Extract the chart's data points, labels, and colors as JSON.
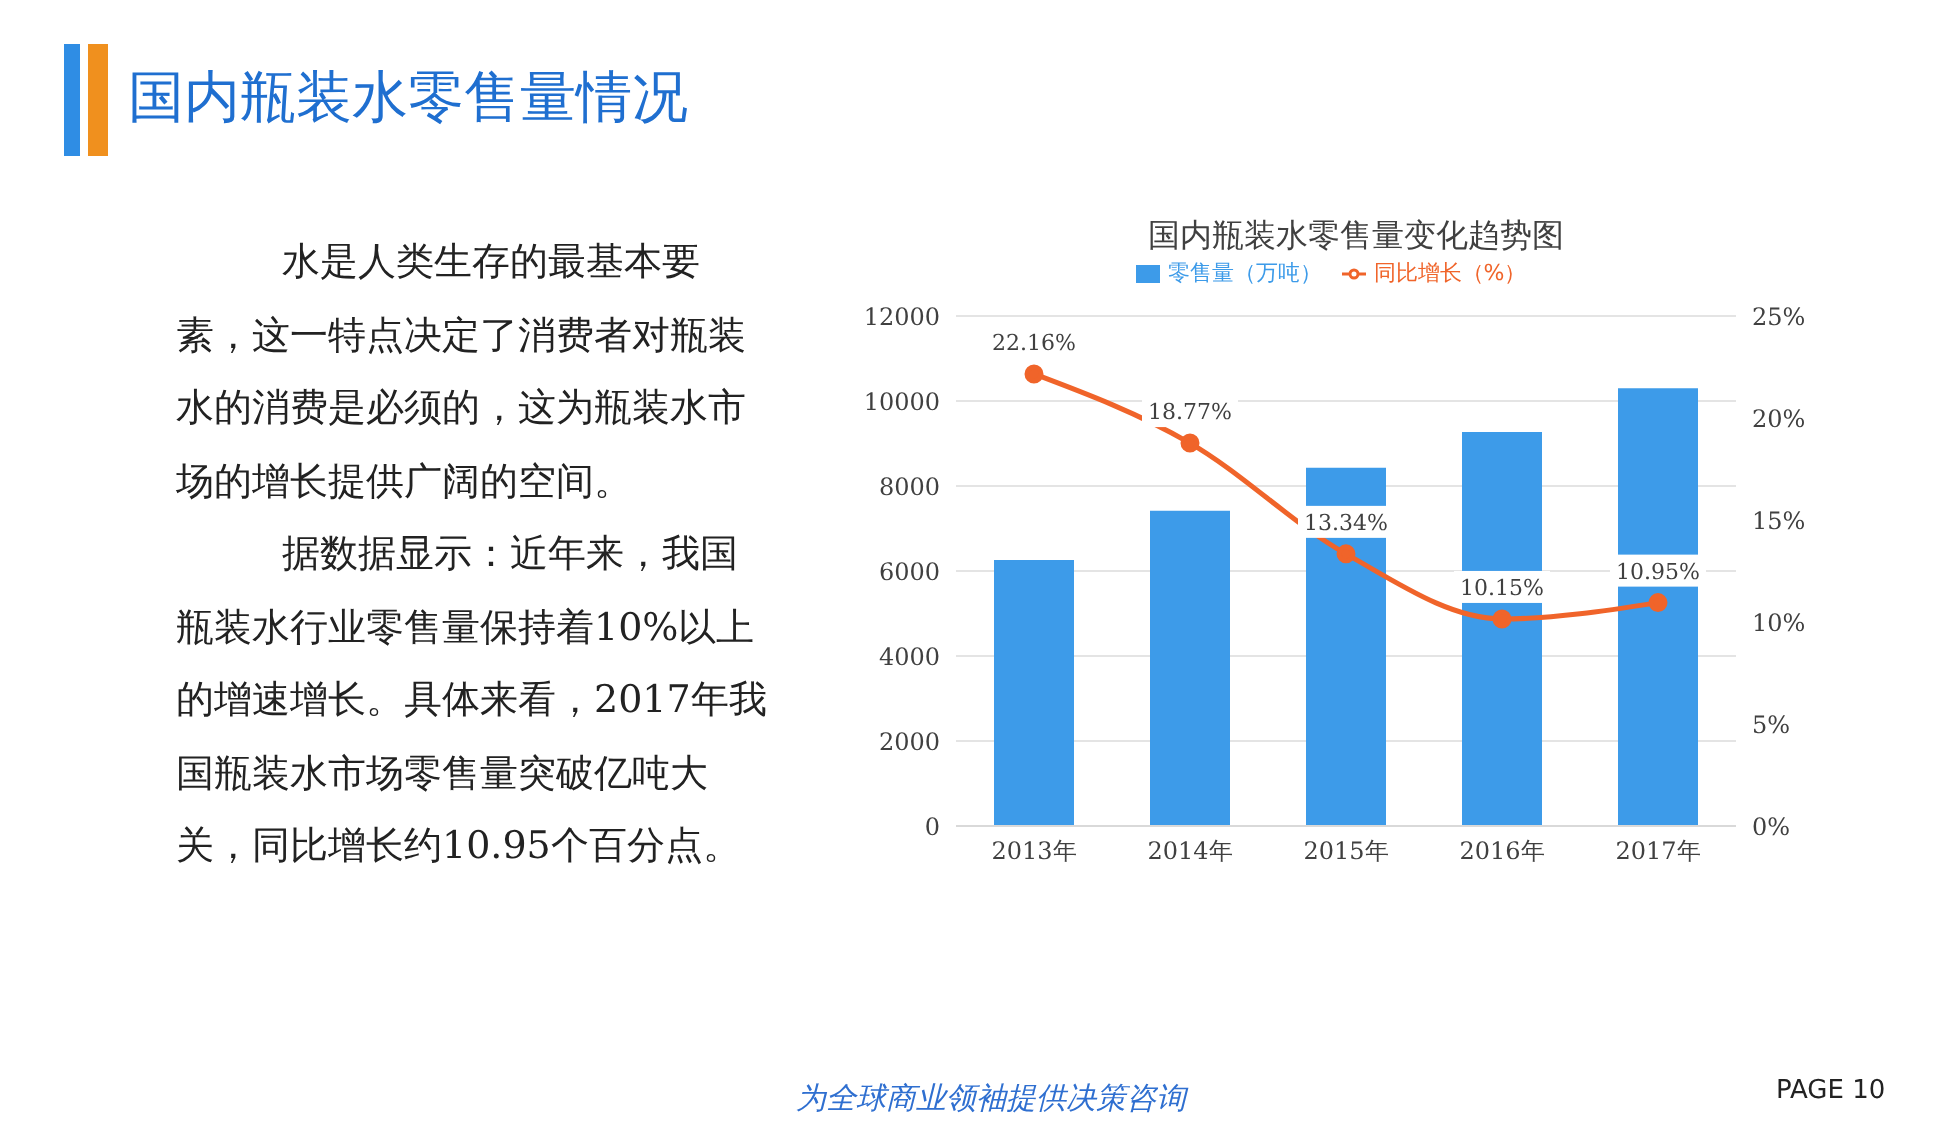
{
  "chart_data": {
    "type": "bar",
    "title": "国内瓶装水零售量变化趋势图",
    "categories": [
      "2013年",
      "2014年",
      "2015年",
      "2016年",
      "2017年"
    ],
    "series": [
      {
        "name": "零售量（万吨）",
        "color": "#3d9be9",
        "values": [
          6260,
          7420,
          8430,
          9270,
          10300
        ]
      },
      {
        "name": "同比增长（%）",
        "type": "line",
        "axis": "y2",
        "color": "#f0642a",
        "values": [
          22.16,
          18.77,
          13.34,
          10.15,
          10.95
        ],
        "value_labels": [
          "22.16%",
          "18.77%",
          "13.34%",
          "10.15%",
          "10.95%"
        ]
      }
    ],
    "ylim": [
      0,
      12000
    ],
    "yticks": [
      0,
      2000,
      4000,
      6000,
      8000,
      10000,
      12000
    ],
    "y2lim": [
      0,
      25
    ],
    "y2ticks": [
      {
        "value": 0,
        "label": "0%"
      },
      {
        "value": 5,
        "label": "5%"
      },
      {
        "value": 10,
        "label": "10%"
      },
      {
        "value": 15,
        "label": "15%"
      },
      {
        "value": 20,
        "label": "20%"
      },
      {
        "value": 25,
        "label": "25%"
      }
    ],
    "grid": "y",
    "legend": "top",
    "marker": "circle",
    "line_style": "solid",
    "annotations": [
      "国内瓶装水零售量情况",
      "水是人类生存的最基本要素，这一特点决定了消费者对瓶装水的消费是必须的，这为瓶装水市场的增长提供广阔的空间。",
      "据数据显示：近年来，我国瓶装水行业零售量保持着10%以上的增速增长。具体来看，2017年我国瓶装水市场零售量突破亿吨大关，同比增长约10.95个百分点。",
      "为全球商业领袖提供决策咨询",
      "PAGE 10"
    ]
  }
}
